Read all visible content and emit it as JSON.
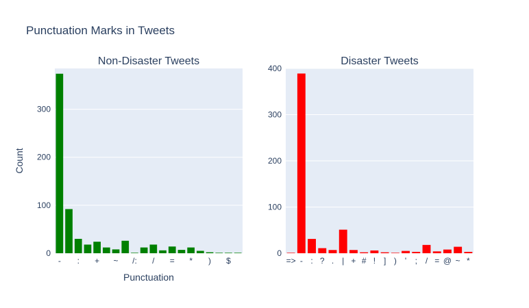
{
  "chart_title": "Punctuation Marks in Tweets",
  "shared_ylabel": "Count",
  "colors": {
    "plot_bg": "#e5ecf6",
    "grid": "#ffffff",
    "text": "#2a3f5f"
  },
  "chart_data": [
    {
      "type": "bar",
      "title": "Non-Disaster Tweets",
      "xlabel": "Punctuation",
      "ylabel": "Count",
      "color": "#008000",
      "ylim": [
        0,
        385
      ],
      "yticks": [
        0,
        100,
        200,
        300
      ],
      "categories": [
        "-",
        "'",
        ":",
        "?",
        "+",
        "#",
        "~",
        "!",
        "/:",
        ";",
        "/",
        "_",
        "=",
        "|",
        "*",
        "]",
        ")",
        "[",
        "$",
        "&"
      ],
      "tick_labels": [
        "-",
        ":",
        "+",
        "~",
        "/:",
        "/",
        "=",
        "*",
        ")",
        "$"
      ],
      "values": [
        374,
        92,
        30,
        18,
        24,
        12,
        8,
        26,
        1,
        12,
        18,
        6,
        14,
        7,
        12,
        5,
        2,
        1,
        1,
        1
      ],
      "grid": true
    },
    {
      "type": "bar",
      "title": "Disaster Tweets",
      "xlabel": "",
      "ylabel": "",
      "color": "#ff0000",
      "ylim": [
        0,
        400
      ],
      "yticks": [
        0,
        100,
        200,
        300,
        400
      ],
      "categories": [
        "=>",
        "-",
        ":",
        "?",
        ".",
        "|",
        "+",
        "#",
        "!",
        "]",
        ")",
        "'",
        ";",
        "/",
        "=",
        "@",
        "~",
        "*"
      ],
      "tick_labels": [
        "=>",
        "-",
        ":",
        "?",
        ".",
        "|",
        "+",
        "#",
        "!",
        "]",
        ")",
        "'",
        ";",
        "/",
        "=",
        "@",
        "~",
        "*"
      ],
      "values": [
        1,
        389,
        31,
        11,
        7,
        51,
        7,
        2,
        6,
        2,
        1,
        5,
        3,
        18,
        4,
        8,
        14,
        3
      ],
      "grid": true
    }
  ]
}
